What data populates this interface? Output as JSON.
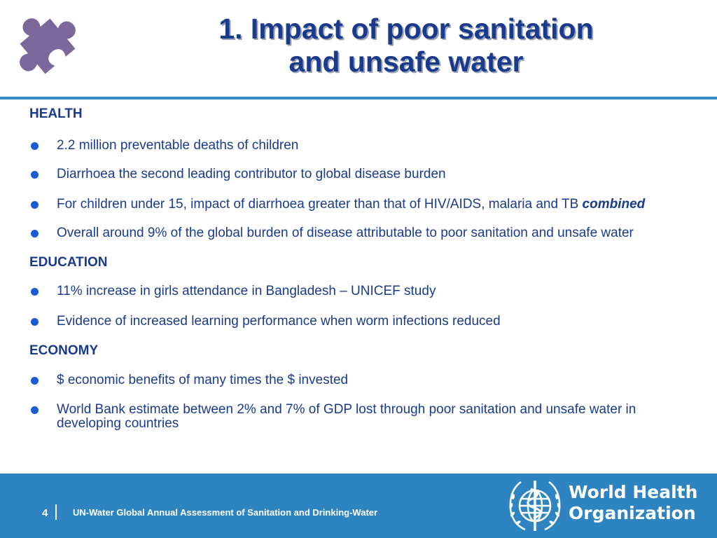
{
  "header": {
    "title_line1": "1. Impact of poor sanitation",
    "title_line2": "and unsafe water",
    "puzzle_icon": "puzzle-piece-icon",
    "puzzle_color": "#7b679a"
  },
  "sections": [
    {
      "heading": "HEALTH",
      "bullets": [
        {
          "text": "2.2 million preventable deaths of children"
        },
        {
          "text": "Diarrhoea the second leading contributor to global disease burden"
        },
        {
          "text": "For children under 15, impact of diarrhoea greater than that of HIV/AIDS, malaria and TB ",
          "emphasis": "combined"
        },
        {
          "text": "Overall around 9% of the global burden of disease attributable to poor sanitation and unsafe water"
        }
      ]
    },
    {
      "heading": "EDUCATION",
      "bullets": [
        {
          "text": "11% increase in girls attendance in Bangladesh – UNICEF study"
        },
        {
          "text": "Evidence of increased learning performance when worm infections reduced"
        }
      ]
    },
    {
      "heading": "ECONOMY",
      "bullets": [
        {
          "text": "$ economic benefits of many times the $ invested"
        },
        {
          "text": "World Bank estimate between 2% and 7% of GDP lost through poor sanitation and unsafe water in developing countries"
        }
      ]
    }
  ],
  "footer": {
    "page_number": "4",
    "page_separator": "|",
    "text": "UN-Water Global Annual Assessment of Sanitation and Drinking-Water",
    "org_line1": "World Health",
    "org_line2": "Organization",
    "emblem_icon": "who-emblem-icon",
    "background_color": "#2d84c0"
  },
  "colors": {
    "text": "#1a3a8c",
    "bullet": "#1a5cd6",
    "rule": "#3a88c4"
  }
}
